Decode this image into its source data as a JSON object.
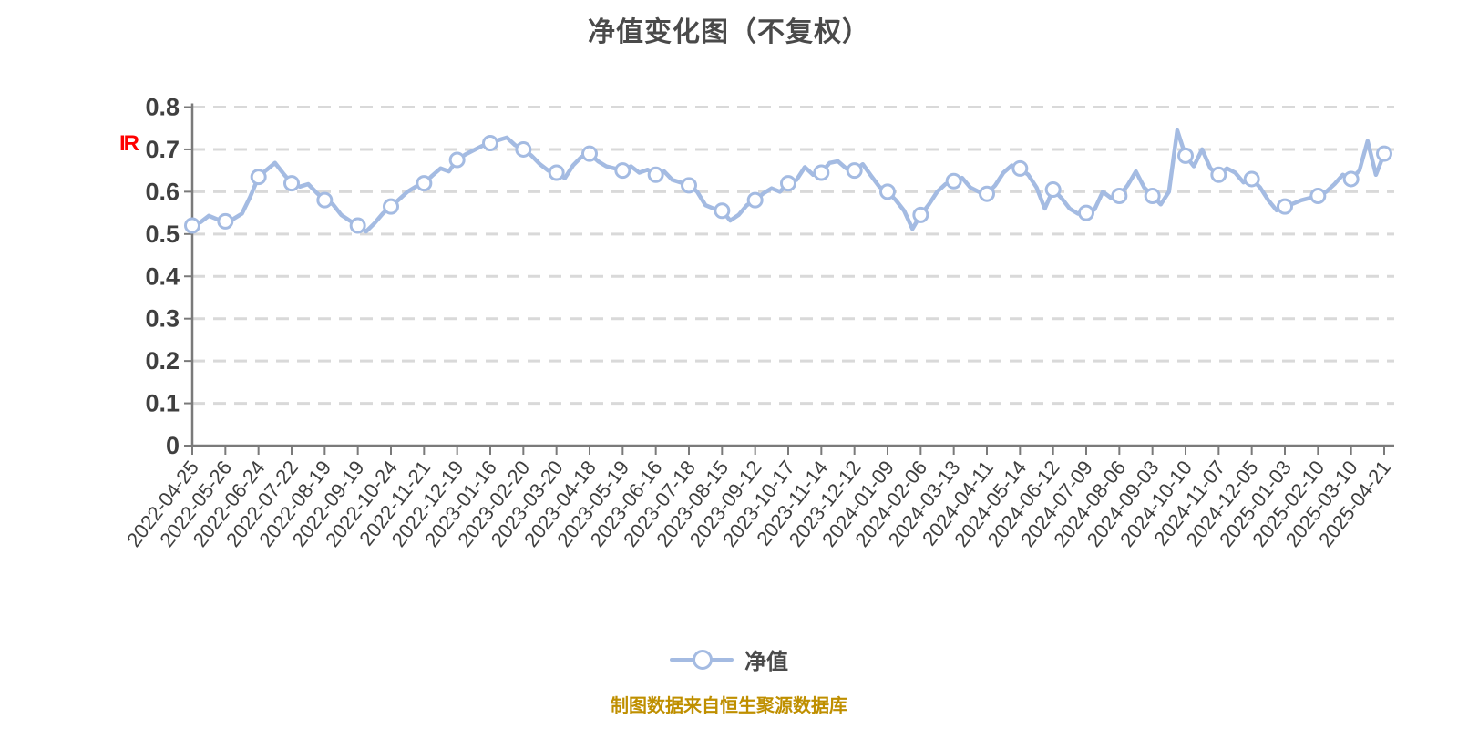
{
  "title": "净值变化图（不复权）",
  "watermark": "IR",
  "legend": {
    "label": "净值"
  },
  "caption": "制图数据来自恒生聚源数据库",
  "chart_data": {
    "type": "line",
    "title": "净值变化图（不复权）",
    "series_name": "净值",
    "xlabel": "",
    "ylabel": "",
    "ylim": [
      0,
      0.8
    ],
    "grid": "horizontal-dashed",
    "legend_position": "bottom",
    "y_tick_labels": [
      "0",
      "0.1",
      "0.2",
      "0.3",
      "0.4",
      "0.5",
      "0.6",
      "0.7",
      "0.8"
    ],
    "x_tick_labels": [
      "2022-04-25",
      "2022-05-26",
      "2022-06-24",
      "2022-07-22",
      "2022-08-19",
      "2022-09-19",
      "2022-10-24",
      "2022-11-21",
      "2022-12-19",
      "2023-01-16",
      "2023-02-20",
      "2023-03-20",
      "2023-04-18",
      "2023-05-19",
      "2023-06-16",
      "2023-07-18",
      "2023-08-15",
      "2023-09-12",
      "2023-10-17",
      "2023-11-14",
      "2023-12-12",
      "2024-01-09",
      "2024-02-06",
      "2024-03-13",
      "2024-04-11",
      "2024-05-14",
      "2024-06-12",
      "2024-07-09",
      "2024-08-06",
      "2024-09-03",
      "2024-10-10",
      "2024-11-07",
      "2024-12-05",
      "2025-01-03",
      "2025-02-10",
      "2025-03-10",
      "2025-04-21"
    ],
    "points_per_tick": 4,
    "values": [
      0.52,
      0.528,
      0.543,
      0.535,
      0.53,
      0.536,
      0.548,
      0.588,
      0.635,
      0.652,
      0.668,
      0.643,
      0.62,
      0.612,
      0.618,
      0.598,
      0.58,
      0.57,
      0.545,
      0.532,
      0.52,
      0.506,
      0.525,
      0.548,
      0.565,
      0.582,
      0.6,
      0.612,
      0.62,
      0.638,
      0.655,
      0.648,
      0.675,
      0.688,
      0.698,
      0.708,
      0.715,
      0.722,
      0.728,
      0.71,
      0.7,
      0.685,
      0.665,
      0.65,
      0.645,
      0.632,
      0.662,
      0.682,
      0.69,
      0.672,
      0.66,
      0.655,
      0.65,
      0.66,
      0.645,
      0.652,
      0.64,
      0.648,
      0.628,
      0.622,
      0.615,
      0.6,
      0.568,
      0.56,
      0.555,
      0.532,
      0.545,
      0.568,
      0.58,
      0.596,
      0.608,
      0.6,
      0.62,
      0.628,
      0.658,
      0.64,
      0.645,
      0.668,
      0.672,
      0.655,
      0.65,
      0.665,
      0.638,
      0.612,
      0.6,
      0.58,
      0.555,
      0.512,
      0.545,
      0.57,
      0.6,
      0.618,
      0.625,
      0.633,
      0.61,
      0.6,
      0.595,
      0.615,
      0.645,
      0.662,
      0.655,
      0.64,
      0.61,
      0.56,
      0.605,
      0.585,
      0.56,
      0.548,
      0.55,
      0.558,
      0.6,
      0.585,
      0.59,
      0.615,
      0.648,
      0.61,
      0.59,
      0.57,
      0.6,
      0.745,
      0.685,
      0.66,
      0.7,
      0.655,
      0.64,
      0.655,
      0.645,
      0.622,
      0.63,
      0.61,
      0.58,
      0.556,
      0.565,
      0.572,
      0.58,
      0.585,
      0.59,
      0.6,
      0.618,
      0.64,
      0.63,
      0.65,
      0.72,
      0.64,
      0.69
    ],
    "colors": {
      "line": "#a4bbe2",
      "marker_fill": "#ffffff",
      "marker_stroke": "#a4bbe2",
      "grid": "#d9d9d9",
      "axis": "#7a7a7a",
      "tick_text": "#3f3f3f",
      "title_text": "#4a4a4a",
      "caption_text": "#bf8f00",
      "watermark_text": "#ff0000"
    }
  }
}
